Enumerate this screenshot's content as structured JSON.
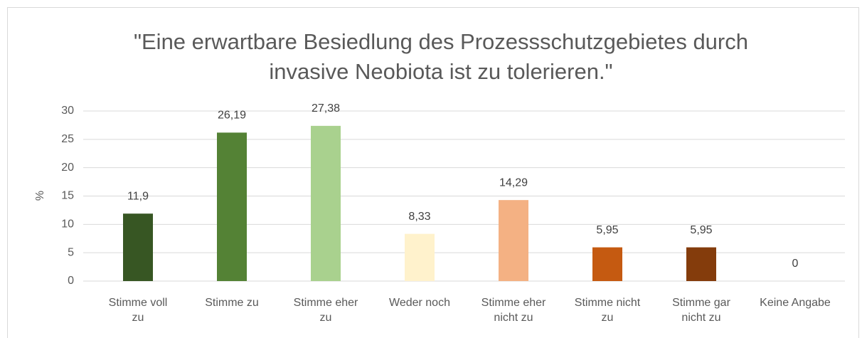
{
  "chart_data": {
    "type": "bar",
    "title": "\"Eine erwartbare Besiedlung des Prozessschutzgebietes durch invasive Neobiota ist zu tolerieren.\"",
    "ylabel": "%",
    "categories": [
      "Stimme voll zu",
      "Stimme zu",
      "Stimme eher zu",
      "Weder noch",
      "Stimme eher nicht zu",
      "Stimme nicht zu",
      "Stimme gar nicht zu",
      "Keine Angabe"
    ],
    "values": [
      11.9,
      26.19,
      27.38,
      8.33,
      14.29,
      5.95,
      5.95,
      0
    ],
    "value_labels": [
      "11,9",
      "26,19",
      "27,38",
      "8,33",
      "14,29",
      "5,95",
      "5,95",
      "0"
    ],
    "colors": [
      "#375623",
      "#548235",
      "#a9d18e",
      "#fff2cc",
      "#f4b183",
      "#c55a11",
      "#843c0c",
      "#7f7f7f"
    ],
    "ylim": [
      0,
      30
    ],
    "yticks": [
      0,
      5,
      10,
      15,
      20,
      25,
      30
    ],
    "grid": true
  }
}
